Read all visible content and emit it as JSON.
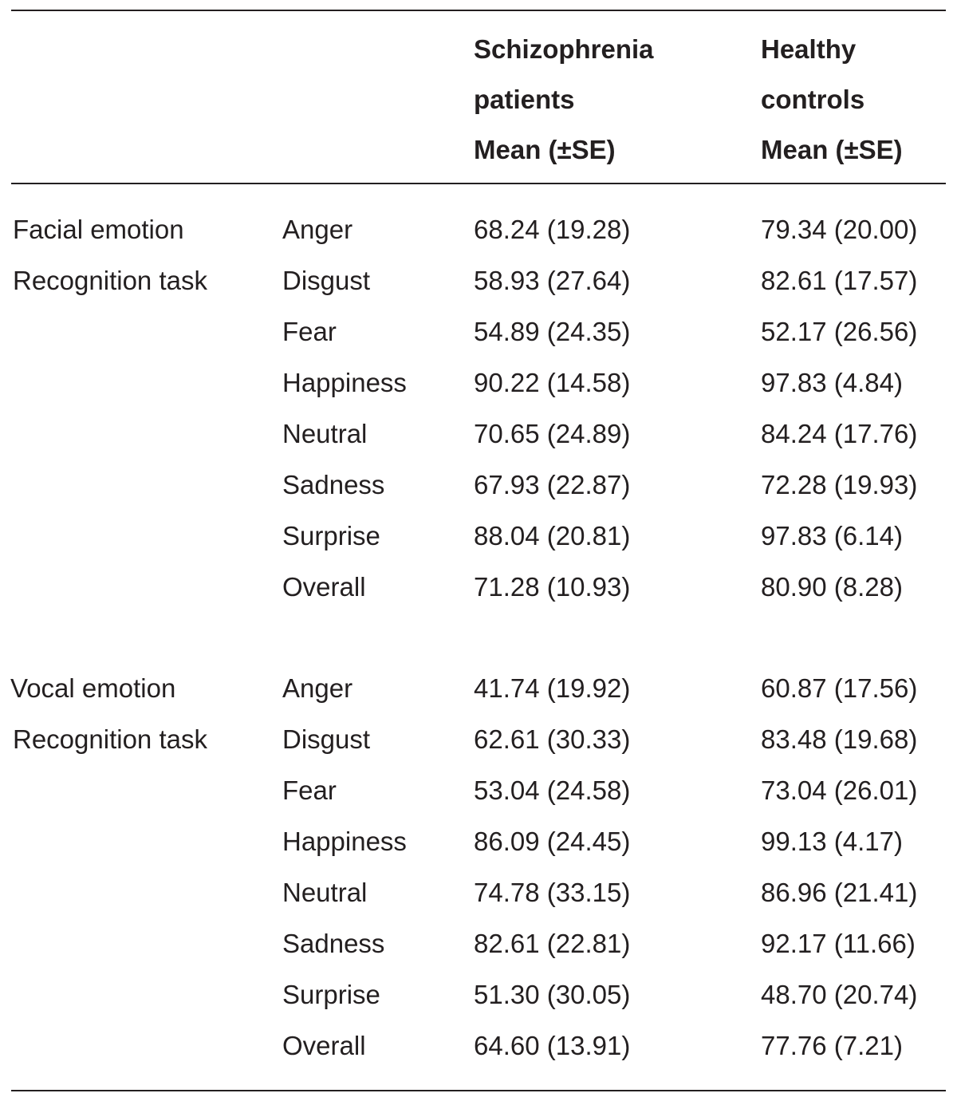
{
  "header": {
    "col3": [
      "Schizophrenia",
      "patients",
      "Mean (±SE)"
    ],
    "col4": [
      "Healthy",
      "controls",
      "Mean (±SE)"
    ]
  },
  "sections": [
    {
      "label": [
        "Facial emotion",
        "Recognition task"
      ],
      "rows": [
        {
          "emotion": "Anger",
          "patients": "68.24 (19.28)",
          "controls": "79.34 (20.00)"
        },
        {
          "emotion": "Disgust",
          "patients": "58.93 (27.64)",
          "controls": "82.61 (17.57)"
        },
        {
          "emotion": "Fear",
          "patients": "54.89 (24.35)",
          "controls": "52.17 (26.56)"
        },
        {
          "emotion": "Happiness",
          "patients": "90.22 (14.58)",
          "controls": "97.83 (4.84)"
        },
        {
          "emotion": "Neutral",
          "patients": "70.65 (24.89)",
          "controls": "84.24 (17.76)"
        },
        {
          "emotion": "Sadness",
          "patients": "67.93 (22.87)",
          "controls": "72.28 (19.93)"
        },
        {
          "emotion": "Surprise",
          "patients": "88.04 (20.81)",
          "controls": "97.83 (6.14)"
        },
        {
          "emotion": "Overall",
          "patients": "71.28 (10.93)",
          "controls": "80.90 (8.28)"
        }
      ]
    },
    {
      "label": [
        "Vocal emotion",
        "Recognition task"
      ],
      "rows": [
        {
          "emotion": "Anger",
          "patients": "41.74 (19.92)",
          "controls": "60.87 (17.56)"
        },
        {
          "emotion": "Disgust",
          "patients": "62.61 (30.33)",
          "controls": "83.48 (19.68)"
        },
        {
          "emotion": "Fear",
          "patients": "53.04 (24.58)",
          "controls": "73.04 (26.01)"
        },
        {
          "emotion": "Happiness",
          "patients": "86.09 (24.45)",
          "controls": "99.13 (4.17)"
        },
        {
          "emotion": "Neutral",
          "patients": "74.78 (33.15)",
          "controls": "86.96 (21.41)"
        },
        {
          "emotion": "Sadness",
          "patients": "82.61 (22.81)",
          "controls": "92.17 (11.66)"
        },
        {
          "emotion": "Surprise",
          "patients": "51.30 (30.05)",
          "controls": "48.70 (20.74)"
        },
        {
          "emotion": "Overall",
          "patients": "64.60 (13.91)",
          "controls": "77.76 (7.21)"
        }
      ]
    }
  ]
}
